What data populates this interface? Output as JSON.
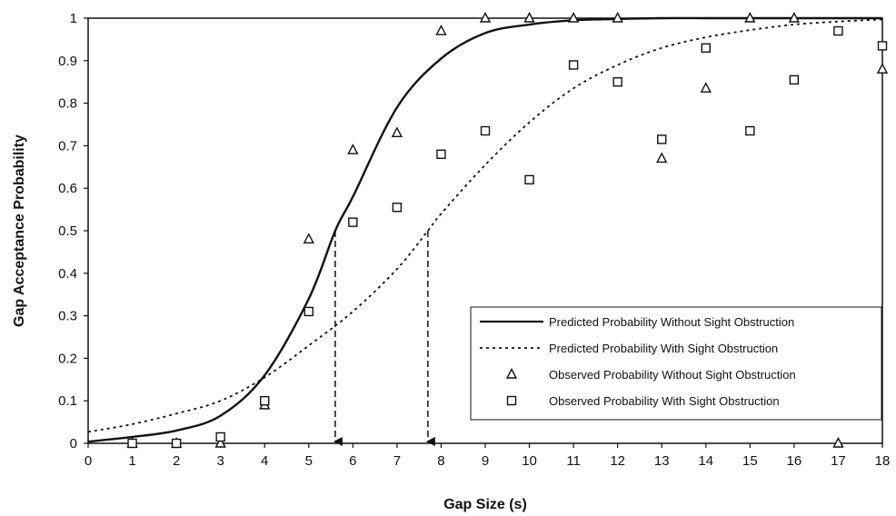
{
  "chart_data": {
    "type": "scatter",
    "xlabel": "Gap Size (s)",
    "ylabel": "Gap Acceptance Probability",
    "xlim": [
      0,
      18
    ],
    "ylim": [
      0,
      1
    ],
    "x_ticks": [
      0,
      1,
      2,
      3,
      4,
      5,
      6,
      7,
      8,
      9,
      10,
      11,
      12,
      13,
      14,
      15,
      16,
      17,
      18
    ],
    "y_ticks": [
      0,
      0.1,
      0.2,
      0.3,
      0.4,
      0.5,
      0.6,
      0.7,
      0.8,
      0.9,
      1
    ],
    "y_tick_labels": [
      "0",
      "0.1",
      "0.2",
      "0.3",
      "0.4",
      "0.5",
      "0.6",
      "0.7",
      "0.8",
      "0.9",
      "1"
    ],
    "grid": false,
    "legend_position": "bottom-right",
    "series": [
      {
        "name": "Predicted Probability Without Sight Obstruction",
        "kind": "line",
        "style": "solid",
        "points": [
          [
            0,
            0.004
          ],
          [
            1,
            0.015
          ],
          [
            2,
            0.03
          ],
          [
            3,
            0.065
          ],
          [
            4,
            0.16
          ],
          [
            5,
            0.34
          ],
          [
            5.6,
            0.5
          ],
          [
            6,
            0.58
          ],
          [
            7,
            0.79
          ],
          [
            8,
            0.905
          ],
          [
            9,
            0.965
          ],
          [
            10,
            0.985
          ],
          [
            11,
            0.995
          ],
          [
            12,
            0.998
          ],
          [
            13,
            1.0
          ],
          [
            14,
            1.0
          ],
          [
            15,
            1.0
          ],
          [
            16,
            1.0
          ],
          [
            17,
            1.0
          ],
          [
            18,
            1.0
          ]
        ]
      },
      {
        "name": "Predicted Probability With Sight Obstruction",
        "kind": "line",
        "style": "dotted",
        "points": [
          [
            0,
            0.027
          ],
          [
            1,
            0.045
          ],
          [
            2,
            0.07
          ],
          [
            3,
            0.1
          ],
          [
            4,
            0.155
          ],
          [
            5,
            0.23
          ],
          [
            6,
            0.31
          ],
          [
            7,
            0.41
          ],
          [
            7.7,
            0.5
          ],
          [
            8,
            0.54
          ],
          [
            9,
            0.655
          ],
          [
            10,
            0.755
          ],
          [
            11,
            0.835
          ],
          [
            12,
            0.89
          ],
          [
            13,
            0.93
          ],
          [
            14,
            0.955
          ],
          [
            15,
            0.972
          ],
          [
            16,
            0.985
          ],
          [
            17,
            0.992
          ],
          [
            18,
            0.997
          ]
        ]
      },
      {
        "name": "Observed Probability Without Sight Obstruction",
        "kind": "scatter",
        "marker": "triangle",
        "points": [
          [
            1,
            0
          ],
          [
            2,
            0
          ],
          [
            3,
            0
          ],
          [
            4,
            0.09
          ],
          [
            5,
            0.48
          ],
          [
            6,
            0.69
          ],
          [
            7,
            0.73
          ],
          [
            8,
            0.97
          ],
          [
            9,
            1.0
          ],
          [
            10,
            1.0
          ],
          [
            11,
            1.0
          ],
          [
            12,
            1.0
          ],
          [
            13,
            0.67
          ],
          [
            14,
            0.835
          ],
          [
            15,
            1.0
          ],
          [
            16,
            1.0
          ],
          [
            17,
            0
          ],
          [
            18,
            0.88
          ]
        ]
      },
      {
        "name": "Observed Probability With Sight Obstruction",
        "kind": "scatter",
        "marker": "square",
        "points": [
          [
            1,
            0
          ],
          [
            2,
            0
          ],
          [
            3,
            0.015
          ],
          [
            4,
            0.1
          ],
          [
            5,
            0.31
          ],
          [
            6,
            0.52
          ],
          [
            7,
            0.555
          ],
          [
            8,
            0.68
          ],
          [
            9,
            0.735
          ],
          [
            10,
            0.62
          ],
          [
            11,
            0.89
          ],
          [
            12,
            0.85
          ],
          [
            13,
            0.715
          ],
          [
            14,
            0.93
          ],
          [
            15,
            0.735
          ],
          [
            16,
            0.855
          ],
          [
            17,
            0.97
          ],
          [
            18,
            0.935
          ]
        ]
      }
    ],
    "reference_arrows": [
      {
        "x": 5.6,
        "y_from": 0.5,
        "y_to": 0
      },
      {
        "x": 7.7,
        "y_from": 0.5,
        "y_to": 0
      }
    ]
  }
}
